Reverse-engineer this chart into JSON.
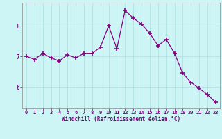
{
  "x": [
    0,
    1,
    2,
    3,
    4,
    5,
    6,
    7,
    8,
    9,
    10,
    11,
    12,
    13,
    14,
    15,
    16,
    17,
    18,
    19,
    20,
    21,
    22,
    23
  ],
  "y": [
    7.0,
    6.9,
    7.1,
    6.95,
    6.85,
    7.05,
    6.95,
    7.1,
    7.1,
    7.3,
    8.0,
    7.25,
    8.5,
    8.25,
    8.05,
    7.75,
    7.35,
    7.55,
    7.1,
    6.45,
    6.15,
    5.95,
    5.75,
    5.5
  ],
  "line_color": "#800080",
  "marker": "+",
  "marker_size": 4,
  "marker_lw": 1.2,
  "bg_color": "#cef5f5",
  "grid_color": "#aadddd",
  "xlabel": "Windchill (Refroidissement éolien,°C)",
  "xlabel_color": "#800080",
  "tick_color": "#800080",
  "spine_color": "#888888",
  "ylim": [
    5.3,
    8.75
  ],
  "yticks": [
    6,
    7,
    8
  ],
  "xlim": [
    -0.5,
    23.5
  ],
  "xticks": [
    0,
    1,
    2,
    3,
    4,
    5,
    6,
    7,
    8,
    9,
    10,
    11,
    12,
    13,
    14,
    15,
    16,
    17,
    18,
    19,
    20,
    21,
    22,
    23
  ],
  "tick_fontsize": 5,
  "xlabel_fontsize": 5.5,
  "line_width": 0.9
}
